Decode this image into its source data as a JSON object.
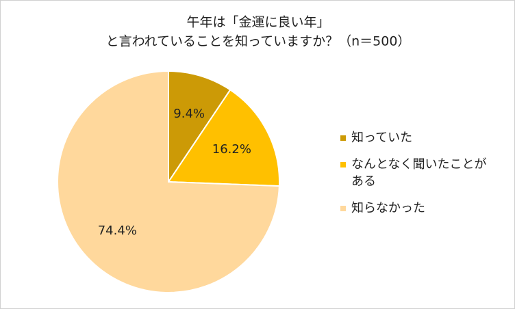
{
  "chart_data": {
    "type": "pie",
    "title": [
      "午年は「金運に良い年」",
      "と言われていることを知っていますか？（n＝500）"
    ],
    "categories": [
      "知っていた",
      "なんとなく聞いたことがある",
      "知らなかった"
    ],
    "values": [
      9.4,
      16.2,
      74.4
    ],
    "value_labels": [
      "9.4%",
      "16.2%",
      "74.4%"
    ],
    "colors": [
      "#cc9a06",
      "#ffc000",
      "#ffd89c"
    ],
    "legend": "right"
  }
}
